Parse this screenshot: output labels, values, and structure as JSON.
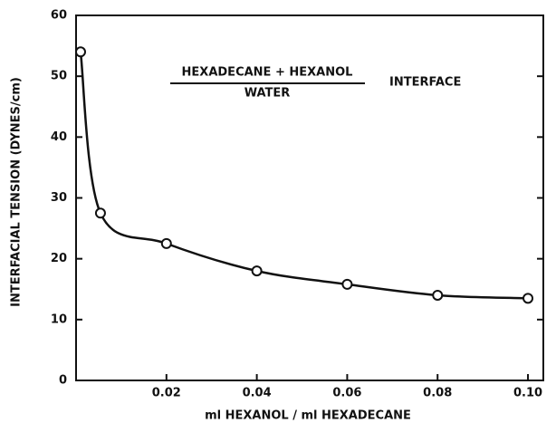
{
  "chart_data": {
    "type": "line",
    "title_numerator": "HEXADECANE + HEXANOL",
    "title_denominator": "WATER",
    "title_suffix": "INTERFACE",
    "x_label": "ml HEXANOL / ml HEXADECANE",
    "y_label": "INTERFACIAL TENSION (DYNES/cm)",
    "x": [
      0.001,
      0.0054,
      0.02,
      0.04,
      0.06,
      0.08,
      0.1
    ],
    "values": [
      54,
      27.5,
      22.5,
      18,
      15.8,
      14,
      13.5
    ],
    "color": "#111111",
    "markers": true,
    "smooth": true,
    "xlim": [
      0,
      0.1034
    ],
    "ylim": [
      0,
      60
    ],
    "xticks": [
      {
        "value": 0.02,
        "label": "0.02"
      },
      {
        "value": 0.04,
        "label": "0.04"
      },
      {
        "value": 0.06,
        "label": "0.06"
      },
      {
        "value": 0.08,
        "label": "0.08"
      },
      {
        "value": 0.1,
        "label": "0.10"
      }
    ],
    "yticks": [
      0,
      10,
      20,
      30,
      40,
      50,
      60
    ],
    "grid": false
  }
}
